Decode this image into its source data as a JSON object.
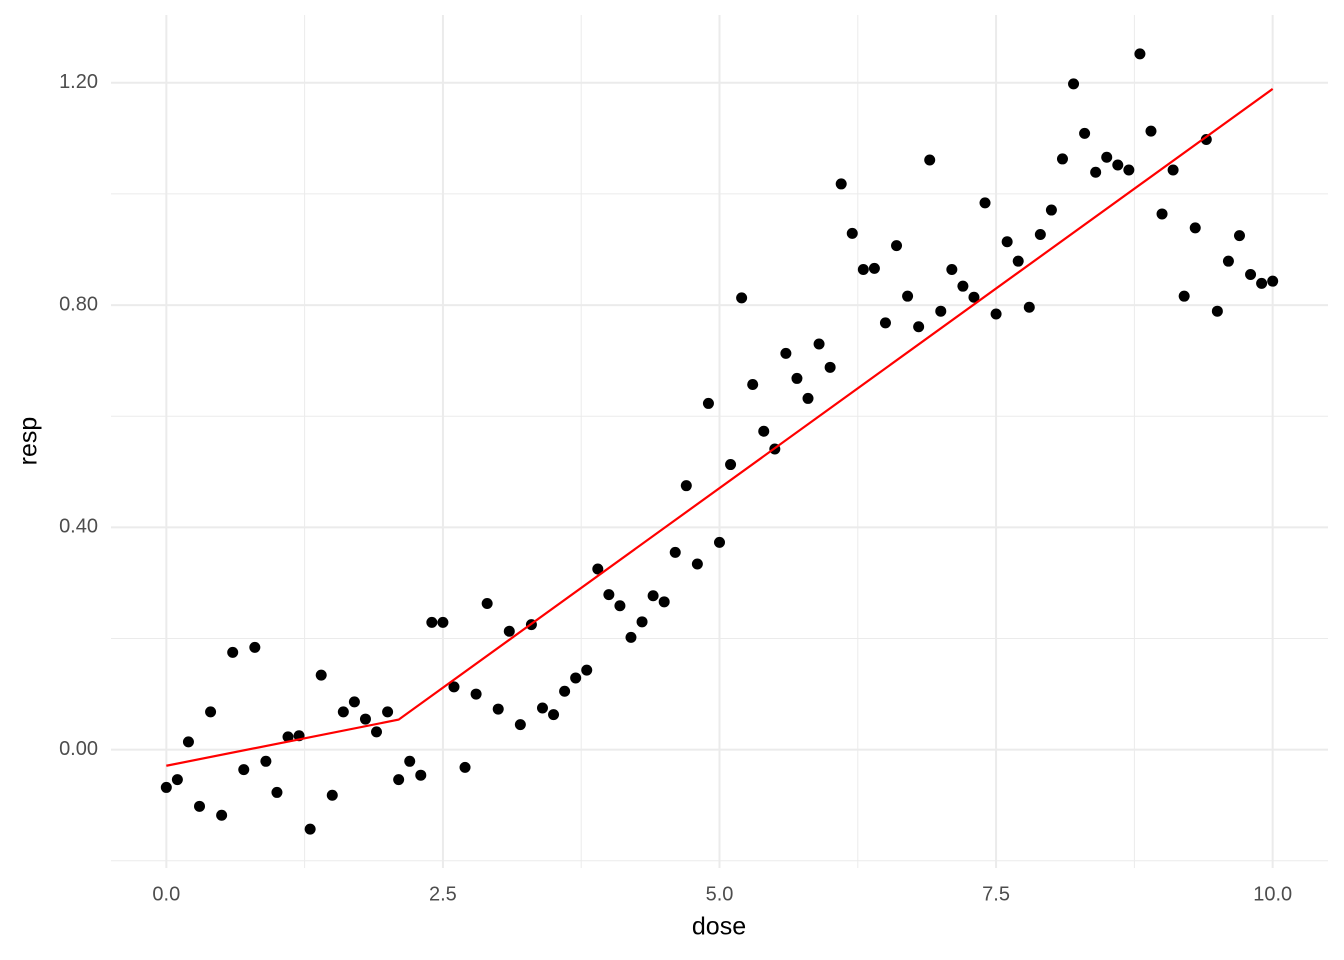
{
  "chart_data": {
    "type": "scatter",
    "x_label": "dose",
    "y_label": "resp",
    "x": [
      0,
      0.1,
      0.2,
      0.3,
      0.4,
      0.5,
      0.6,
      0.7,
      0.8,
      0.9,
      1,
      1.1,
      1.2,
      1.3,
      1.4,
      1.5,
      1.6,
      1.7,
      1.8,
      1.9,
      2,
      2.1,
      2.2,
      2.3,
      2.4,
      2.5,
      2.6,
      2.7,
      2.8,
      2.9,
      3,
      3.1,
      3.2,
      3.3,
      3.4,
      3.5,
      3.6,
      3.7,
      3.8,
      3.9,
      4,
      4.1,
      4.2,
      4.3,
      4.4,
      4.5,
      4.6,
      4.7,
      4.8,
      4.9,
      5,
      5.1,
      5.2,
      5.3,
      5.4,
      5.5,
      5.6,
      5.7,
      5.8,
      5.9,
      6,
      6.1,
      6.2,
      6.3,
      6.4,
      6.5,
      6.6,
      6.7,
      6.8,
      6.9,
      7,
      7.1,
      7.2,
      7.3,
      7.4,
      7.5,
      7.6,
      7.7,
      7.8,
      7.9,
      8,
      8.1,
      8.2,
      8.3,
      8.4,
      8.5,
      8.6,
      8.7,
      8.8,
      8.9,
      9,
      9.1,
      9.2,
      9.3,
      9.4,
      9.5,
      9.6,
      9.7,
      9.8,
      9.9,
      10
    ],
    "y": [
      -0.068,
      -0.054,
      0.014,
      -0.102,
      0.068,
      -0.118,
      0.175,
      -0.036,
      0.184,
      -0.021,
      -0.077,
      0.023,
      0.025,
      -0.143,
      0.134,
      -0.082,
      0.068,
      0.086,
      0.055,
      0.032,
      0.068,
      -0.054,
      -0.021,
      -0.046,
      0.229,
      0.229,
      0.113,
      -0.032,
      0.1,
      0.263,
      0.073,
      0.213,
      0.045,
      0.225,
      0.075,
      0.063,
      0.105,
      0.129,
      0.143,
      0.325,
      0.279,
      0.259,
      0.202,
      0.23,
      0.277,
      0.266,
      0.355,
      0.475,
      0.334,
      0.623,
      0.373,
      0.513,
      0.813,
      0.657,
      0.573,
      0.541,
      0.713,
      0.668,
      0.632,
      0.73,
      0.688,
      1.018,
      0.929,
      0.864,
      0.866,
      0.768,
      0.907,
      0.816,
      0.761,
      1.061,
      0.789,
      0.864,
      0.834,
      0.814,
      0.984,
      0.784,
      0.914,
      0.879,
      0.796,
      0.927,
      0.971,
      1.063,
      1.198,
      1.109,
      1.039,
      1.066,
      1.052,
      1.043,
      1.252,
      1.113,
      0.964,
      1.043,
      0.816,
      0.939,
      1.098,
      0.789,
      0.879,
      0.925,
      0.855,
      0.839,
      0.843
    ],
    "color": "#000000",
    "line": {
      "color": "#ff0000",
      "x": [
        0,
        2.1,
        10
      ],
      "y": [
        -0.029,
        0.054,
        1.189
      ]
    },
    "xlim": [
      -0.5,
      10.5
    ],
    "ylim": [
      -0.213,
      1.322
    ],
    "xticks": [
      {
        "value": 0,
        "label": "0.0"
      },
      2.5,
      {
        "value": 5,
        "label": "5.0"
      },
      7.5,
      {
        "value": 10,
        "label": "10.0"
      }
    ],
    "yticks": [
      {
        "value": 0,
        "label": "0.00"
      },
      {
        "value": 0.4,
        "label": "0.40"
      },
      {
        "value": 0.8,
        "label": "0.80"
      },
      {
        "value": 1.2,
        "label": "1.20"
      }
    ],
    "x_minor_grid": [
      1.25,
      3.75,
      6.25,
      8.75
    ],
    "y_minor_grid": [
      -0.2,
      0.2,
      0.6,
      1.0
    ],
    "grid": true
  }
}
